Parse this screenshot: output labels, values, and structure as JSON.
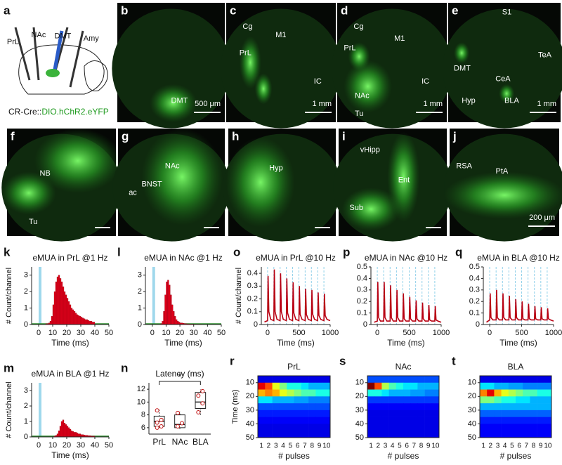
{
  "panels": [
    {
      "letter": "a",
      "labels": [
        "PrL",
        "NAc",
        "DMT",
        "Amy"
      ],
      "caption": [
        "CR-Cre::",
        "DIO.hChR2.eYFP"
      ]
    },
    {
      "letter": "b",
      "labels": [
        "DMT"
      ],
      "scale": "500 μm"
    },
    {
      "letter": "c",
      "labels": [
        "Cg",
        "M1",
        "PrL",
        "IC"
      ],
      "scale": "1 mm"
    },
    {
      "letter": "d",
      "labels": [
        "Cg",
        "M1",
        "PrL",
        "NAc",
        "IC",
        "Tu"
      ],
      "scale": "1 mm"
    },
    {
      "letter": "e",
      "labels": [
        "S1",
        "TeA",
        "DMT",
        "CeA",
        "Hyp",
        "BLA"
      ],
      "scale": "1 mm"
    },
    {
      "letter": "f",
      "labels": [
        "NB",
        "Tu"
      ]
    },
    {
      "letter": "g",
      "labels": [
        "NAc",
        "BNST",
        "ac"
      ]
    },
    {
      "letter": "h",
      "labels": [
        "Hyp"
      ]
    },
    {
      "letter": "i",
      "labels": [
        "vHipp",
        "Ent",
        "Sub"
      ]
    },
    {
      "letter": "j",
      "labels": [
        "RSA",
        "PtA"
      ],
      "scale": "200 μm"
    }
  ],
  "chart_data": [
    {
      "type": "histogram",
      "letter": "k",
      "title": "eMUA in PrL @1 Hz",
      "xlabel": "Time (ms)",
      "ylabel": "# Count/channel",
      "color": "#e0001a",
      "stimulus": [
        0,
        2
      ],
      "stimulus_color": "#9fd8ec",
      "bins": [
        5,
        6,
        7,
        8,
        9,
        10,
        11,
        12,
        13,
        14,
        15,
        16,
        17,
        18,
        19,
        20,
        21,
        22,
        23,
        24,
        25,
        26,
        27,
        28,
        29,
        30,
        31,
        32,
        33,
        34,
        35,
        36,
        37,
        38,
        39,
        40
      ],
      "values": [
        0.05,
        0.05,
        0.1,
        0.2,
        0.5,
        1.2,
        2.0,
        2.6,
        2.9,
        3.0,
        2.8,
        2.6,
        2.3,
        2.0,
        1.8,
        1.6,
        1.4,
        1.2,
        1.0,
        0.9,
        0.8,
        0.7,
        0.6,
        0.55,
        0.5,
        0.45,
        0.4,
        0.35,
        0.3,
        0.3,
        0.25,
        0.2,
        0.2,
        0.15,
        0.15
      ],
      "xlim": [
        -5,
        50
      ],
      "xticks": [
        0,
        10,
        20,
        30,
        40,
        50
      ],
      "ylim": [
        0,
        3.5
      ],
      "yticks": [
        0,
        1,
        2,
        3
      ]
    },
    {
      "type": "histogram",
      "letter": "l",
      "title": "eMUA in NAc @1 Hz",
      "xlabel": "Time (ms)",
      "color": "#e0001a",
      "stimulus": [
        0,
        2
      ],
      "stimulus_color": "#9fd8ec",
      "bins": [
        5,
        6,
        7,
        8,
        9,
        10,
        11,
        12,
        13,
        14,
        15,
        16,
        17,
        18,
        19,
        20,
        21,
        22,
        23,
        24,
        25,
        26,
        27,
        28,
        29,
        30,
        31,
        32,
        33,
        34,
        35,
        36,
        37,
        38,
        39,
        40
      ],
      "values": [
        0,
        0.05,
        0.2,
        0.8,
        1.8,
        2.6,
        2.7,
        2.4,
        1.8,
        1.2,
        0.8,
        0.5,
        0.3,
        0.2,
        0.15,
        0.1,
        0.1,
        0.08,
        0.06,
        0.05,
        0.04,
        0.04,
        0.03,
        0.03,
        0.03,
        0.02,
        0.02,
        0.02,
        0.02,
        0.02,
        0.02,
        0.01,
        0.01,
        0.01,
        0.01
      ],
      "xlim": [
        -5,
        50
      ],
      "xticks": [
        0,
        10,
        20,
        30,
        40,
        50
      ],
      "ylim": [
        0,
        3.5
      ],
      "yticks": [
        0,
        1,
        2,
        3
      ]
    },
    {
      "type": "line",
      "letter": "o",
      "title": "eMUA in PrL @10 Hz",
      "xlabel": "Time (ms)",
      "ylabel": "# Count/channel",
      "color": "#b80012",
      "pulse_color": "#8fd0ea",
      "pulses": [
        0,
        100,
        200,
        300,
        400,
        500,
        600,
        700,
        800,
        900
      ],
      "x": [
        -50,
        0,
        8,
        20,
        50,
        100,
        108,
        120,
        150,
        200,
        208,
        220,
        250,
        300,
        308,
        320,
        350,
        400,
        408,
        420,
        450,
        500,
        508,
        520,
        550,
        600,
        608,
        620,
        650,
        700,
        708,
        720,
        750,
        800,
        808,
        820,
        850,
        900,
        908,
        920,
        950,
        1000
      ],
      "values": [
        0.02,
        0.03,
        0.38,
        0.1,
        0.04,
        0.03,
        0.43,
        0.1,
        0.04,
        0.03,
        0.4,
        0.1,
        0.04,
        0.03,
        0.36,
        0.09,
        0.04,
        0.03,
        0.33,
        0.09,
        0.04,
        0.03,
        0.3,
        0.08,
        0.04,
        0.03,
        0.28,
        0.08,
        0.04,
        0.03,
        0.27,
        0.08,
        0.04,
        0.03,
        0.25,
        0.07,
        0.04,
        0.03,
        0.24,
        0.07,
        0.04,
        0.03
      ],
      "xlim": [
        -100,
        1000
      ],
      "xticks": [
        0,
        500,
        1000
      ],
      "ylim": [
        0,
        0.45
      ],
      "yticks": [
        0,
        0.1,
        0.2,
        0.3,
        0.4
      ]
    },
    {
      "type": "line",
      "letter": "p",
      "title": "eMUA in NAc @10 Hz",
      "xlabel": "Time (ms)",
      "color": "#b80012",
      "pulse_color": "#8fd0ea",
      "pulses": [
        0,
        100,
        200,
        300,
        400,
        500,
        600,
        700,
        800,
        900
      ],
      "x": [
        -50,
        0,
        8,
        20,
        50,
        100,
        108,
        120,
        150,
        200,
        208,
        220,
        250,
        300,
        308,
        320,
        350,
        400,
        408,
        420,
        450,
        500,
        508,
        520,
        550,
        600,
        608,
        620,
        650,
        700,
        708,
        720,
        750,
        800,
        808,
        820,
        850,
        900,
        908,
        920,
        950,
        1000
      ],
      "values": [
        0.02,
        0.03,
        0.37,
        0.06,
        0.03,
        0.03,
        0.37,
        0.06,
        0.03,
        0.03,
        0.34,
        0.06,
        0.03,
        0.03,
        0.3,
        0.06,
        0.03,
        0.03,
        0.27,
        0.05,
        0.03,
        0.03,
        0.24,
        0.05,
        0.03,
        0.03,
        0.21,
        0.05,
        0.03,
        0.03,
        0.19,
        0.05,
        0.03,
        0.03,
        0.17,
        0.04,
        0.03,
        0.03,
        0.16,
        0.04,
        0.03,
        0.02
      ],
      "xlim": [
        -100,
        1000
      ],
      "xticks": [
        0,
        500,
        1000
      ],
      "ylim": [
        0,
        0.5
      ],
      "yticks": [
        0,
        0.1,
        0.2,
        0.3,
        0.4,
        0.5
      ]
    },
    {
      "type": "line",
      "letter": "q",
      "title": "eMUA in BLA @10 Hz",
      "xlabel": "Time (ms)",
      "color": "#b80012",
      "pulse_color": "#8fd0ea",
      "pulses": [
        0,
        100,
        200,
        300,
        400,
        500,
        600,
        700,
        800,
        900
      ],
      "x": [
        -50,
        0,
        8,
        20,
        50,
        100,
        108,
        120,
        150,
        200,
        208,
        220,
        250,
        300,
        308,
        320,
        350,
        400,
        408,
        420,
        450,
        500,
        508,
        520,
        550,
        600,
        608,
        620,
        650,
        700,
        708,
        720,
        750,
        800,
        808,
        820,
        850,
        900,
        908,
        920,
        950,
        1000
      ],
      "values": [
        0.02,
        0.04,
        0.27,
        0.06,
        0.04,
        0.04,
        0.3,
        0.06,
        0.04,
        0.04,
        0.27,
        0.06,
        0.04,
        0.04,
        0.25,
        0.06,
        0.04,
        0.04,
        0.22,
        0.06,
        0.04,
        0.04,
        0.2,
        0.05,
        0.04,
        0.04,
        0.18,
        0.05,
        0.04,
        0.04,
        0.16,
        0.05,
        0.04,
        0.04,
        0.15,
        0.05,
        0.04,
        0.04,
        0.14,
        0.05,
        0.04,
        0.03
      ],
      "xlim": [
        -100,
        1000
      ],
      "xticks": [
        0,
        500,
        1000
      ],
      "ylim": [
        0,
        0.5
      ],
      "yticks": [
        0,
        0.1,
        0.2,
        0.3,
        0.4,
        0.5
      ]
    },
    {
      "type": "histogram",
      "letter": "m",
      "title": "eMUA in BLA @1 Hz",
      "xlabel": "Time (ms)",
      "ylabel": "# Count/channel",
      "color": "#e0001a",
      "stimulus": [
        0,
        2
      ],
      "stimulus_color": "#9fd8ec",
      "bins": [
        5,
        6,
        7,
        8,
        9,
        10,
        11,
        12,
        13,
        14,
        15,
        16,
        17,
        18,
        19,
        20,
        21,
        22,
        23,
        24,
        25,
        26,
        27,
        28,
        29,
        30,
        31,
        32,
        33,
        34,
        35,
        36,
        37,
        38,
        39,
        40
      ],
      "values": [
        0,
        0,
        0,
        0,
        0,
        0.02,
        0.05,
        0.1,
        0.2,
        0.4,
        0.7,
        1.0,
        1.1,
        0.9,
        0.8,
        0.7,
        0.6,
        0.5,
        0.4,
        0.35,
        0.3,
        0.3,
        0.25,
        0.2,
        0.2,
        0.15,
        0.15,
        0.12,
        0.1,
        0.1,
        0.08,
        0.08,
        0.06,
        0.05,
        0.05
      ],
      "xlim": [
        -5,
        50
      ],
      "xticks": [
        0,
        10,
        20,
        30,
        40,
        50
      ],
      "ylim": [
        0,
        3.5
      ],
      "yticks": [
        0,
        1,
        2,
        3
      ]
    },
    {
      "type": "box",
      "letter": "n",
      "title": "Latency (ms)",
      "annotation": "*",
      "categories": [
        "PrL",
        "NAc",
        "BLA"
      ],
      "boxes": [
        {
          "low": 6,
          "q1": 6.2,
          "median": 7,
          "q3": 7.8,
          "high": 8.8,
          "points": [
            6,
            6.2,
            6.8,
            7.2,
            8.7
          ]
        },
        {
          "low": 5.8,
          "q1": 6,
          "median": 6.5,
          "q3": 8,
          "high": 8.5,
          "points": [
            6.2,
            6.7,
            8.3
          ]
        },
        {
          "low": 8,
          "q1": 9,
          "median": 10,
          "q3": 11.5,
          "high": 12,
          "points": [
            8.4,
            9.8,
            11,
            11.7
          ]
        }
      ],
      "ylim": [
        5,
        13
      ],
      "yticks": [
        6,
        8,
        10,
        12
      ]
    },
    {
      "type": "heatmap",
      "letter": "r",
      "title": "PrL",
      "xlabel": "# pulses",
      "ylabel": "Time (ms)",
      "colormap": "jet",
      "categories": [
        1,
        2,
        3,
        4,
        5,
        6,
        7,
        8,
        9,
        10
      ],
      "ybins": [
        5,
        10,
        15,
        20,
        25,
        30,
        35,
        40,
        45,
        50
      ],
      "values": [
        [
          0.1,
          0.1,
          0.1,
          0.1,
          0.1,
          0.1,
          0.1,
          0.1,
          0.1,
          0.1
        ],
        [
          0.9,
          0.8,
          0.6,
          0.5,
          0.4,
          0.4,
          0.35,
          0.3,
          0.3,
          0.3
        ],
        [
          0.7,
          0.75,
          0.7,
          0.6,
          0.55,
          0.5,
          0.45,
          0.45,
          0.4,
          0.4
        ],
        [
          0.35,
          0.35,
          0.3,
          0.3,
          0.3,
          0.28,
          0.28,
          0.25,
          0.25,
          0.25
        ],
        [
          0.2,
          0.2,
          0.2,
          0.2,
          0.2,
          0.2,
          0.2,
          0.2,
          0.2,
          0.2
        ],
        [
          0.15,
          0.15,
          0.15,
          0.15,
          0.15,
          0.15,
          0.15,
          0.15,
          0.15,
          0.15
        ],
        [
          0.12,
          0.12,
          0.12,
          0.12,
          0.12,
          0.12,
          0.12,
          0.12,
          0.12,
          0.12
        ],
        [
          0.1,
          0.1,
          0.1,
          0.1,
          0.1,
          0.1,
          0.1,
          0.1,
          0.1,
          0.1
        ],
        [
          0.1,
          0.1,
          0.1,
          0.1,
          0.1,
          0.1,
          0.1,
          0.1,
          0.1,
          0.1
        ]
      ],
      "ylim": [
        5,
        50
      ],
      "yticks": [
        10,
        20,
        30,
        40,
        50
      ]
    },
    {
      "type": "heatmap",
      "letter": "s",
      "title": "NAc",
      "xlabel": "# pulses",
      "colormap": "jet",
      "categories": [
        1,
        2,
        3,
        4,
        5,
        6,
        7,
        8,
        9,
        10
      ],
      "ybins": [
        5,
        10,
        15,
        20,
        25,
        30,
        35,
        40,
        45,
        50
      ],
      "values": [
        [
          0.2,
          0.2,
          0.2,
          0.2,
          0.2,
          0.2,
          0.2,
          0.2,
          0.2,
          0.2
        ],
        [
          1.0,
          0.8,
          0.55,
          0.45,
          0.4,
          0.35,
          0.35,
          0.3,
          0.3,
          0.3
        ],
        [
          0.4,
          0.4,
          0.35,
          0.3,
          0.3,
          0.3,
          0.28,
          0.28,
          0.25,
          0.25
        ],
        [
          0.18,
          0.18,
          0.18,
          0.18,
          0.18,
          0.18,
          0.18,
          0.18,
          0.18,
          0.18
        ],
        [
          0.12,
          0.12,
          0.12,
          0.12,
          0.12,
          0.12,
          0.12,
          0.12,
          0.12,
          0.12
        ],
        [
          0.1,
          0.1,
          0.1,
          0.1,
          0.1,
          0.1,
          0.1,
          0.1,
          0.1,
          0.1
        ],
        [
          0.1,
          0.1,
          0.1,
          0.1,
          0.1,
          0.1,
          0.1,
          0.1,
          0.1,
          0.1
        ],
        [
          0.1,
          0.1,
          0.1,
          0.1,
          0.1,
          0.1,
          0.1,
          0.1,
          0.1,
          0.1
        ],
        [
          0.1,
          0.1,
          0.1,
          0.1,
          0.1,
          0.1,
          0.1,
          0.1,
          0.1,
          0.1
        ]
      ],
      "ylim": [
        5,
        50
      ],
      "yticks": [
        10,
        20,
        30,
        40,
        50
      ]
    },
    {
      "type": "heatmap",
      "letter": "t",
      "title": "BLA",
      "xlabel": "# pulses",
      "colormap": "jet",
      "categories": [
        1,
        2,
        3,
        4,
        5,
        6,
        7,
        8,
        9,
        10
      ],
      "ybins": [
        5,
        10,
        15,
        20,
        25,
        30,
        35,
        40,
        45,
        50
      ],
      "values": [
        [
          0.1,
          0.1,
          0.1,
          0.1,
          0.1,
          0.1,
          0.1,
          0.1,
          0.1,
          0.1
        ],
        [
          0.35,
          0.35,
          0.3,
          0.3,
          0.28,
          0.28,
          0.25,
          0.25,
          0.25,
          0.25
        ],
        [
          0.75,
          0.9,
          0.7,
          0.6,
          0.55,
          0.5,
          0.45,
          0.45,
          0.4,
          0.4
        ],
        [
          0.5,
          0.5,
          0.45,
          0.4,
          0.4,
          0.35,
          0.35,
          0.3,
          0.3,
          0.3
        ],
        [
          0.3,
          0.3,
          0.3,
          0.3,
          0.3,
          0.3,
          0.3,
          0.3,
          0.3,
          0.3
        ],
        [
          0.22,
          0.22,
          0.22,
          0.22,
          0.22,
          0.22,
          0.22,
          0.22,
          0.22,
          0.22
        ],
        [
          0.15,
          0.15,
          0.15,
          0.15,
          0.15,
          0.15,
          0.15,
          0.15,
          0.15,
          0.15
        ],
        [
          0.12,
          0.12,
          0.12,
          0.12,
          0.12,
          0.12,
          0.12,
          0.12,
          0.12,
          0.12
        ],
        [
          0.12,
          0.12,
          0.12,
          0.12,
          0.12,
          0.12,
          0.12,
          0.12,
          0.12,
          0.12
        ]
      ],
      "ylim": [
        5,
        50
      ],
      "yticks": [
        10,
        20,
        30,
        40,
        50
      ]
    }
  ]
}
